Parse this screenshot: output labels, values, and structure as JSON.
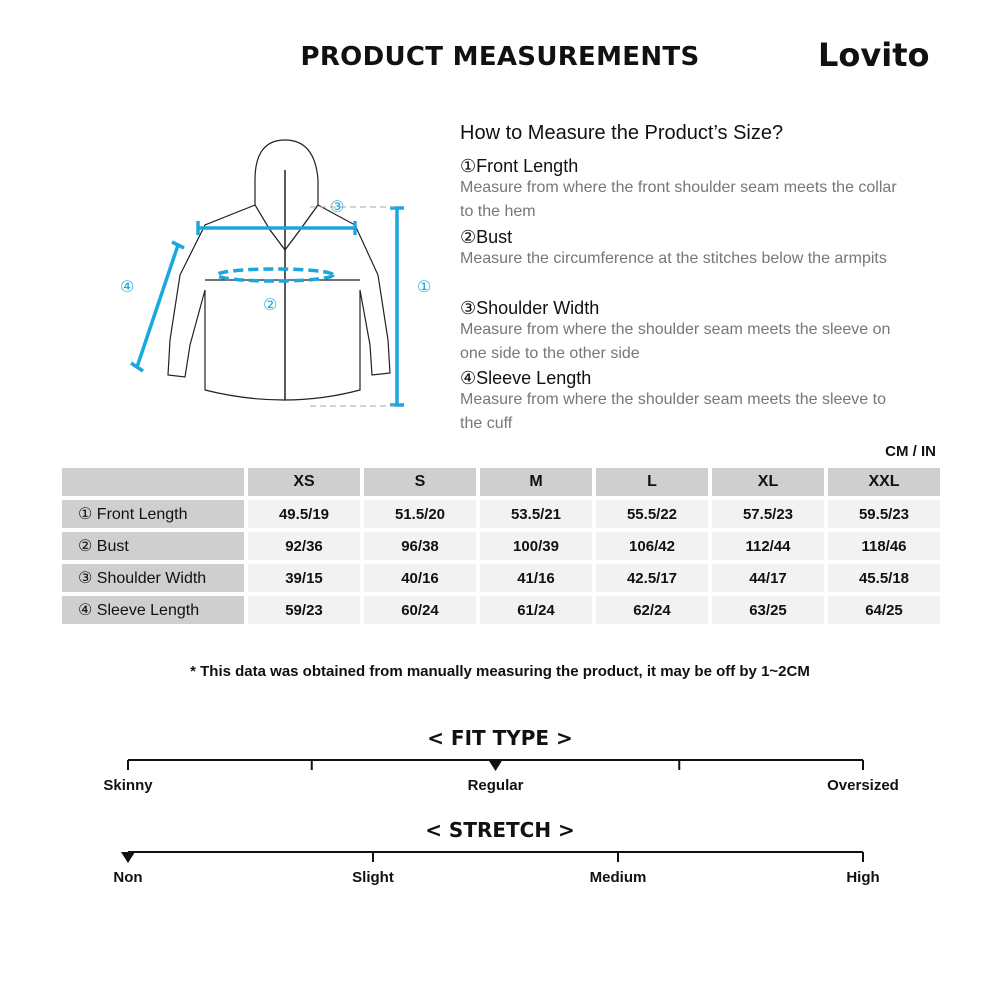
{
  "header": {
    "title": "PRODUCT MEASUREMENTS",
    "brand": "Lovito"
  },
  "guide": {
    "title": "How to Measure the Product’s Size?",
    "items": [
      {
        "num": "①",
        "name": "Front Length",
        "desc": "Measure from where the front shoulder seam meets the collar to the hem"
      },
      {
        "num": "②",
        "name": "Bust",
        "desc": "Measure the circumference at the stitches below the armpits"
      },
      {
        "num": "③",
        "name": "Shoulder Width",
        "desc": "Measure from where the shoulder seam meets the sleeve on one side to the other side"
      },
      {
        "num": "④",
        "name": "Sleeve Length",
        "desc": "Measure from where the shoulder seam meets the sleeve to the cuff"
      }
    ]
  },
  "diagram": {
    "labels": [
      "①",
      "②",
      "③",
      "④"
    ],
    "accent": "#1aa7e0"
  },
  "table": {
    "unit": "CM / IN",
    "sizes": [
      "XS",
      "S",
      "M",
      "L",
      "XL",
      "XXL"
    ],
    "rows": [
      {
        "label": "① Front Length",
        "values": [
          "49.5/19",
          "51.5/20",
          "53.5/21",
          "55.5/22",
          "57.5/23",
          "59.5/23"
        ]
      },
      {
        "label": "② Bust",
        "values": [
          "92/36",
          "96/38",
          "100/39",
          "106/42",
          "112/44",
          "118/46"
        ]
      },
      {
        "label": "③ Shoulder Width",
        "values": [
          "39/15",
          "40/16",
          "41/16",
          "42.5/17",
          "44/17",
          "45.5/18"
        ]
      },
      {
        "label": "④ Sleeve Length",
        "values": [
          "59/23",
          "60/24",
          "61/24",
          "62/24",
          "63/25",
          "64/25"
        ]
      }
    ]
  },
  "note": "* This data was obtained from manually measuring the product, it may be off by 1~2CM",
  "fit": {
    "title": "< FIT TYPE >",
    "labels": [
      "Skinny",
      "Regular",
      "Oversized"
    ],
    "selected": "Regular",
    "selected_position": 0.5
  },
  "stretch": {
    "title": "< STRETCH >",
    "labels": [
      "Non",
      "Slight",
      "Medium",
      "High"
    ],
    "selected": "Non",
    "selected_position": 0
  }
}
